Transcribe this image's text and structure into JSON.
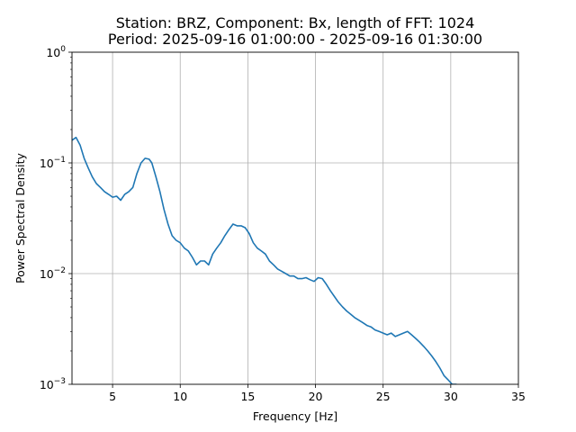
{
  "chart_data": {
    "type": "line",
    "title_line1": "Station: BRZ, Component: Bx, length of FFT: 1024",
    "title_line2": "Period: 2025-09-16 01:00:00 - 2025-09-16 01:30:00",
    "xlabel": "Frequency [Hz]",
    "ylabel": "Power Spectral Density",
    "xlim": [
      2,
      35
    ],
    "ylim": [
      0.001,
      1
    ],
    "yscale": "log",
    "grid": true,
    "x_ticks": [
      5,
      10,
      15,
      20,
      25,
      30,
      35
    ],
    "x_tick_labels": [
      "5",
      "10",
      "15",
      "20",
      "25",
      "30",
      "35"
    ],
    "y_ticks": [
      {
        "value": 0.001,
        "mantissa": "10",
        "exponent": "−3"
      },
      {
        "value": 0.01,
        "mantissa": "10",
        "exponent": "−2"
      },
      {
        "value": 0.1,
        "mantissa": "10",
        "exponent": "−1"
      },
      {
        "value": 1,
        "mantissa": "10",
        "exponent": "0"
      }
    ],
    "series": [
      {
        "color": "#1f77b4",
        "x": [
          2.0,
          2.3,
          2.6,
          2.9,
          3.2,
          3.5,
          3.8,
          4.1,
          4.4,
          4.7,
          5.0,
          5.3,
          5.6,
          5.9,
          6.2,
          6.5,
          6.8,
          7.1,
          7.4,
          7.7,
          7.9,
          8.2,
          8.5,
          8.8,
          9.1,
          9.4,
          9.7,
          10.0,
          10.3,
          10.6,
          10.9,
          11.2,
          11.5,
          11.8,
          12.1,
          12.4,
          12.7,
          13.0,
          13.3,
          13.6,
          13.9,
          14.2,
          14.5,
          14.8,
          15.1,
          15.4,
          15.7,
          16.0,
          16.3,
          16.6,
          16.9,
          17.2,
          17.5,
          17.8,
          18.1,
          18.4,
          18.7,
          19.0,
          19.3,
          19.6,
          19.9,
          20.2,
          20.5,
          20.8,
          21.1,
          21.4,
          21.7,
          22.0,
          22.3,
          22.6,
          22.9,
          23.2,
          23.5,
          23.8,
          24.1,
          24.4,
          24.7,
          25.0,
          25.3,
          25.6,
          25.9,
          26.2,
          26.5,
          26.8,
          27.1,
          27.4,
          27.7,
          28.0,
          28.3,
          28.6,
          28.9,
          29.2,
          29.5,
          29.8,
          30.1,
          30.4,
          30.7,
          31.0,
          31.3
        ],
        "y": [
          0.16,
          0.17,
          0.145,
          0.11,
          0.09,
          0.075,
          0.065,
          0.06,
          0.055,
          0.052,
          0.049,
          0.05,
          0.046,
          0.052,
          0.055,
          0.06,
          0.08,
          0.1,
          0.11,
          0.108,
          0.1,
          0.075,
          0.055,
          0.038,
          0.028,
          0.022,
          0.02,
          0.019,
          0.017,
          0.016,
          0.014,
          0.012,
          0.013,
          0.013,
          0.012,
          0.015,
          0.017,
          0.019,
          0.022,
          0.025,
          0.028,
          0.027,
          0.027,
          0.026,
          0.023,
          0.019,
          0.017,
          0.016,
          0.015,
          0.013,
          0.012,
          0.011,
          0.0105,
          0.01,
          0.0095,
          0.0095,
          0.009,
          0.009,
          0.0092,
          0.0088,
          0.0085,
          0.0092,
          0.009,
          0.008,
          0.007,
          0.0062,
          0.0055,
          0.005,
          0.0046,
          0.0043,
          0.004,
          0.0038,
          0.0036,
          0.0034,
          0.0033,
          0.0031,
          0.003,
          0.0029,
          0.0028,
          0.0029,
          0.0027,
          0.0028,
          0.0029,
          0.003,
          0.0028,
          0.0026,
          0.0024,
          0.0022,
          0.002,
          0.0018,
          0.0016,
          0.0014,
          0.0012,
          0.0011,
          0.001,
          0.001,
          0.0009,
          0.0009,
          0.001
        ]
      }
    ]
  }
}
